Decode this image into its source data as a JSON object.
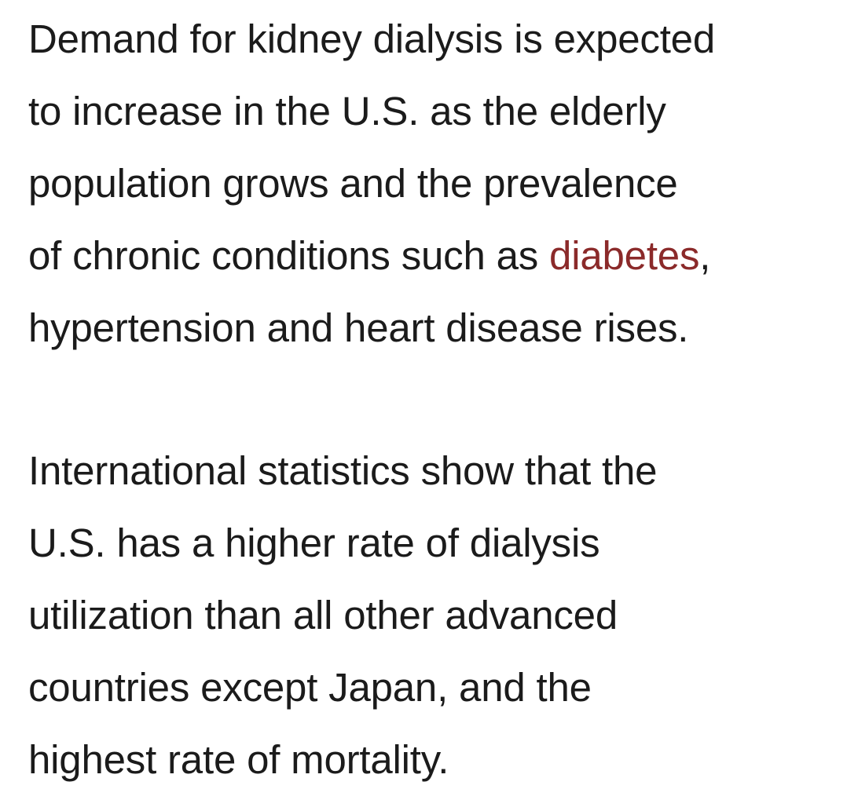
{
  "paragraphs": [
    {
      "lines": [
        "Demand for kidney dialysis is expected",
        "to increase in the U.S. as the elderly",
        "population grows and the prevalence"
      ],
      "line4_before": "of chronic conditions such as ",
      "link_text": "diabetes",
      "line4_after": ",",
      "line5": "hypertension and heart disease rises."
    },
    {
      "lines": [
        "International statistics show that the",
        "U.S. has a higher rate of dialysis",
        "utilization than all other advanced",
        "countries except Japan, and the",
        "highest rate of mortality."
      ]
    }
  ],
  "colors": {
    "text": "#1b1b1b",
    "link": "#8b2a2a",
    "background": "#ffffff"
  }
}
